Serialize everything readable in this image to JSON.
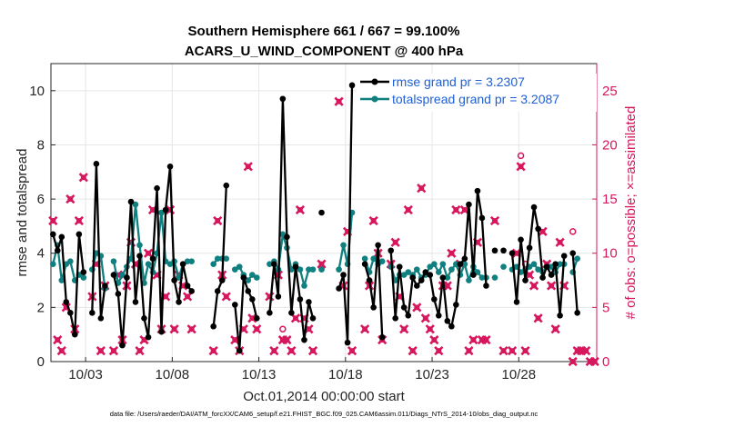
{
  "chart_data": {
    "type": "line",
    "title": "Southern Hemisphere 661 / 667 = 99.100%",
    "subtitle": "ACARS_U_WIND_COMPONENT @ 400 hPa",
    "xlabel": "Oct.01,2014 00:00:00 start",
    "ylabel": "rmse and totalspread",
    "y2label": "# of obs: o=possible; ×=assimilated",
    "xlim": [
      1,
      32.5
    ],
    "ylim": [
      0,
      11
    ],
    "y2lim": [
      0,
      27.5
    ],
    "xticks": [
      3,
      8,
      13,
      18,
      23,
      28
    ],
    "xtick_labels": [
      "10/03",
      "10/08",
      "10/13",
      "10/18",
      "10/23",
      "10/28"
    ],
    "yticks": [
      0,
      2,
      4,
      6,
      8,
      10
    ],
    "y2ticks": [
      0,
      5,
      10,
      15,
      20,
      25
    ],
    "grid": true,
    "legend_location": "top-right",
    "series": [
      {
        "name": "rmse grand pr = 3.2307",
        "color": "#000000",
        "points": [
          [
            1.12,
            4.7
          ],
          [
            1.38,
            4.1
          ],
          [
            1.62,
            4.6
          ],
          [
            1.88,
            2.2
          ],
          [
            2.12,
            1.8
          ],
          [
            2.38,
            1.0
          ],
          [
            2.62,
            4.7
          ],
          [
            2.88,
            3.3
          ],
          [
            3.38,
            1.8
          ],
          [
            3.62,
            7.3
          ],
          [
            3.88,
            1.6
          ],
          [
            4.12,
            2.8
          ],
          [
            4.62,
            3.2
          ],
          [
            4.88,
            2.5
          ],
          [
            5.12,
            0.6
          ],
          [
            5.38,
            3.1
          ],
          [
            5.62,
            5.9
          ],
          [
            5.88,
            2.2
          ],
          [
            6.12,
            3.9
          ],
          [
            6.38,
            1.6
          ],
          [
            6.62,
            0.9
          ],
          [
            6.88,
            3.8
          ],
          [
            7.12,
            6.4
          ],
          [
            7.38,
            1.1
          ],
          [
            7.62,
            5.6
          ],
          [
            7.88,
            7.2
          ],
          [
            8.12,
            3.0
          ],
          [
            8.38,
            2.2
          ],
          [
            8.62,
            3.6
          ],
          [
            8.88,
            2.8
          ],
          [
            9.12,
            2.6
          ],
          [
            10.38,
            1.3
          ],
          [
            10.62,
            2.6
          ],
          [
            10.88,
            3.0
          ],
          [
            11.12,
            6.5
          ],
          [
            11.62,
            2.1
          ],
          [
            11.88,
            0.4
          ],
          [
            12.12,
            3.1
          ],
          [
            12.38,
            2.6
          ],
          [
            12.62,
            2.3
          ],
          [
            12.88,
            1.6
          ],
          [
            13.62,
            1.8
          ],
          [
            13.88,
            3.6
          ],
          [
            14.12,
            2.4
          ],
          [
            14.38,
            9.7
          ],
          [
            14.62,
            4.6
          ],
          [
            14.88,
            1.8
          ],
          [
            15.12,
            3.5
          ],
          [
            15.38,
            2.3
          ],
          [
            15.62,
            0.8
          ],
          [
            15.88,
            2.2
          ],
          [
            16.12,
            1.6
          ],
          [
            16.62,
            5.5
          ],
          [
            17.62,
            2.7
          ],
          [
            17.88,
            3.2
          ],
          [
            18.12,
            0.7
          ],
          [
            18.38,
            10.2
          ],
          [
            19.12,
            3.6
          ],
          [
            19.38,
            3.0
          ],
          [
            19.62,
            2.0
          ],
          [
            19.88,
            4.3
          ],
          [
            20.12,
            0.9
          ],
          [
            20.62,
            4.1
          ],
          [
            20.88,
            1.6
          ],
          [
            21.12,
            3.5
          ],
          [
            21.38,
            2.0
          ],
          [
            21.62,
            1.7
          ],
          [
            21.88,
            3.1
          ],
          [
            22.12,
            2.8
          ],
          [
            22.38,
            3.0
          ],
          [
            22.62,
            3.3
          ],
          [
            22.88,
            3.2
          ],
          [
            23.12,
            2.3
          ],
          [
            23.38,
            1.7
          ],
          [
            23.62,
            3.1
          ],
          [
            23.88,
            1.5
          ],
          [
            24.12,
            1.3
          ],
          [
            24.38,
            2.1
          ],
          [
            24.62,
            3.6
          ],
          [
            24.88,
            3.8
          ],
          [
            25.12,
            5.8
          ],
          [
            25.38,
            3.2
          ],
          [
            25.62,
            6.3
          ],
          [
            25.88,
            5.3
          ],
          [
            26.12,
            2.8
          ],
          [
            26.62,
            4.1
          ],
          [
            27.12,
            4.1
          ],
          [
            27.62,
            4.0
          ],
          [
            27.88,
            2.2
          ],
          [
            28.12,
            4.5
          ],
          [
            28.38,
            3.0
          ],
          [
            28.62,
            4.2
          ],
          [
            28.88,
            5.7
          ],
          [
            29.12,
            4.9
          ],
          [
            29.38,
            3.1
          ],
          [
            29.62,
            3.5
          ],
          [
            29.88,
            3.2
          ],
          [
            30.12,
            3.6
          ],
          [
            30.38,
            1.7
          ],
          [
            30.62,
            3.9
          ],
          [
            31.12,
            4.0
          ],
          [
            31.38,
            1.8
          ]
        ]
      },
      {
        "name": "totalspread grand pr = 3.2087",
        "color": "#0f7f7f",
        "points": [
          [
            1.12,
            3.6
          ],
          [
            1.38,
            4.3
          ],
          [
            1.62,
            3.0
          ],
          [
            1.88,
            3.6
          ],
          [
            2.12,
            3.7
          ],
          [
            2.38,
            3.0
          ],
          [
            2.62,
            3.2
          ],
          [
            2.88,
            3.1
          ],
          [
            3.38,
            3.4
          ],
          [
            3.62,
            4.0
          ],
          [
            3.88,
            3.9
          ],
          [
            4.12,
            2.7
          ],
          [
            4.62,
            3.7
          ],
          [
            4.88,
            2.9
          ],
          [
            5.12,
            3.2
          ],
          [
            5.38,
            3.5
          ],
          [
            5.62,
            3.8
          ],
          [
            5.88,
            5.8
          ],
          [
            6.12,
            4.3
          ],
          [
            6.38,
            2.9
          ],
          [
            6.62,
            3.6
          ],
          [
            6.88,
            3.3
          ],
          [
            7.12,
            4.0
          ],
          [
            7.38,
            5.5
          ],
          [
            7.62,
            3.7
          ],
          [
            7.88,
            3.6
          ],
          [
            8.12,
            3.7
          ],
          [
            8.38,
            3.1
          ],
          [
            8.62,
            3.6
          ],
          [
            8.88,
            3.7
          ],
          [
            9.12,
            3.7
          ],
          [
            10.38,
            3.6
          ],
          [
            10.62,
            3.8
          ],
          [
            10.88,
            3.8
          ],
          [
            11.12,
            3.8
          ],
          [
            11.62,
            3.4
          ],
          [
            11.88,
            3.5
          ],
          [
            12.12,
            3.2
          ],
          [
            12.38,
            3.0
          ],
          [
            12.62,
            3.2
          ],
          [
            12.88,
            3.1
          ],
          [
            13.62,
            3.6
          ],
          [
            13.88,
            3.7
          ],
          [
            14.12,
            3.4
          ],
          [
            14.38,
            4.7
          ],
          [
            14.62,
            4.2
          ],
          [
            14.88,
            3.4
          ],
          [
            15.12,
            3.6
          ],
          [
            15.38,
            3.4
          ],
          [
            15.62,
            2.8
          ],
          [
            15.88,
            3.4
          ],
          [
            16.12,
            3.4
          ],
          [
            16.62,
            3.4
          ],
          [
            17.62,
            3.4
          ],
          [
            17.88,
            4.3
          ],
          [
            18.12,
            3.6
          ],
          [
            18.38,
            5.5
          ],
          [
            19.12,
            3.8
          ],
          [
            19.38,
            3.3
          ],
          [
            19.62,
            3.8
          ],
          [
            19.88,
            3.6
          ],
          [
            20.12,
            3.7
          ],
          [
            20.62,
            3.5
          ],
          [
            20.88,
            3.0
          ],
          [
            21.12,
            3.2
          ],
          [
            21.38,
            3.2
          ],
          [
            21.62,
            3.3
          ],
          [
            21.88,
            3.2
          ],
          [
            22.12,
            3.4
          ],
          [
            22.38,
            3.1
          ],
          [
            22.62,
            3.2
          ],
          [
            22.88,
            3.5
          ],
          [
            23.12,
            3.6
          ],
          [
            23.38,
            3.3
          ],
          [
            23.62,
            3.6
          ],
          [
            23.88,
            3.1
          ],
          [
            24.12,
            3.4
          ],
          [
            24.38,
            3.6
          ],
          [
            24.62,
            3.2
          ],
          [
            24.88,
            3.6
          ],
          [
            25.12,
            3.0
          ],
          [
            25.38,
            3.5
          ],
          [
            25.62,
            3.3
          ],
          [
            25.88,
            3.1
          ],
          [
            26.12,
            3.1
          ],
          [
            26.62,
            3.1
          ],
          [
            27.12,
            3.5
          ],
          [
            27.62,
            3.4
          ],
          [
            27.88,
            3.5
          ],
          [
            28.12,
            3.3
          ],
          [
            28.38,
            3.4
          ],
          [
            28.62,
            3.5
          ],
          [
            28.88,
            3.6
          ],
          [
            29.12,
            3.4
          ],
          [
            29.38,
            3.3
          ],
          [
            29.62,
            3.5
          ],
          [
            29.88,
            3.5
          ],
          [
            30.12,
            3.3
          ],
          [
            30.38,
            3.6
          ],
          [
            30.62,
            3.6
          ],
          [
            31.12,
            3.3
          ],
          [
            31.38,
            3.8
          ]
        ]
      }
    ],
    "obs_possible": {
      "name": "possible",
      "color": "#d6175d",
      "marker": "o",
      "points": [
        [
          14.38,
          3
        ],
        [
          28.12,
          19
        ],
        [
          28.38,
          9
        ],
        [
          31.12,
          12
        ]
      ]
    },
    "obs_assimilated": {
      "name": "assimilated",
      "color": "#d6175d",
      "marker": "x",
      "points": [
        [
          1.12,
          13
        ],
        [
          1.38,
          2
        ],
        [
          1.62,
          1
        ],
        [
          1.88,
          5
        ],
        [
          2.12,
          15
        ],
        [
          2.38,
          3
        ],
        [
          2.62,
          13
        ],
        [
          2.88,
          17
        ],
        [
          3.38,
          6
        ],
        [
          3.62,
          9
        ],
        [
          3.88,
          1
        ],
        [
          4.12,
          7
        ],
        [
          4.62,
          1
        ],
        [
          4.88,
          8
        ],
        [
          5.12,
          2
        ],
        [
          5.38,
          7
        ],
        [
          5.62,
          11
        ],
        [
          5.88,
          9
        ],
        [
          6.12,
          1
        ],
        [
          6.38,
          2
        ],
        [
          6.62,
          10
        ],
        [
          6.88,
          14
        ],
        [
          7.12,
          8
        ],
        [
          7.38,
          3
        ],
        [
          7.62,
          6
        ],
        [
          7.88,
          14
        ],
        [
          8.12,
          3
        ],
        [
          8.38,
          8
        ],
        [
          8.62,
          7
        ],
        [
          8.88,
          6
        ],
        [
          9.12,
          3
        ],
        [
          10.38,
          1
        ],
        [
          10.62,
          13
        ],
        [
          10.88,
          8
        ],
        [
          11.12,
          6
        ],
        [
          11.62,
          2
        ],
        [
          11.88,
          1
        ],
        [
          12.12,
          3
        ],
        [
          12.38,
          18
        ],
        [
          12.62,
          4
        ],
        [
          12.88,
          3
        ],
        [
          13.62,
          6
        ],
        [
          13.88,
          1
        ],
        [
          14.12,
          8
        ],
        [
          14.38,
          2
        ],
        [
          14.62,
          2
        ],
        [
          14.88,
          1
        ],
        [
          15.12,
          4
        ],
        [
          15.38,
          14
        ],
        [
          15.62,
          4
        ],
        [
          15.88,
          3
        ],
        [
          16.12,
          1
        ],
        [
          16.62,
          9
        ],
        [
          17.62,
          24
        ],
        [
          17.88,
          7
        ],
        [
          18.12,
          12
        ],
        [
          18.38,
          1
        ],
        [
          19.12,
          3
        ],
        [
          19.38,
          7
        ],
        [
          19.62,
          13
        ],
        [
          19.88,
          10
        ],
        [
          20.12,
          2
        ],
        [
          20.62,
          9
        ],
        [
          20.88,
          11
        ],
        [
          21.12,
          6
        ],
        [
          21.38,
          3
        ],
        [
          21.62,
          14
        ],
        [
          21.88,
          1
        ],
        [
          22.12,
          5
        ],
        [
          22.38,
          16
        ],
        [
          22.62,
          4
        ],
        [
          22.88,
          3
        ],
        [
          23.12,
          2
        ],
        [
          23.38,
          1
        ],
        [
          23.62,
          7
        ],
        [
          23.88,
          7
        ],
        [
          24.12,
          10
        ],
        [
          24.38,
          14
        ],
        [
          24.62,
          9
        ],
        [
          24.88,
          14
        ],
        [
          25.12,
          1
        ],
        [
          25.38,
          2
        ],
        [
          25.62,
          11
        ],
        [
          25.88,
          2
        ],
        [
          26.12,
          2
        ],
        [
          26.62,
          13
        ],
        [
          27.12,
          1
        ],
        [
          27.62,
          1
        ],
        [
          27.88,
          10
        ],
        [
          28.12,
          18
        ],
        [
          28.38,
          1
        ],
        [
          28.62,
          8
        ],
        [
          28.88,
          7
        ],
        [
          29.12,
          4
        ],
        [
          29.38,
          12
        ],
        [
          29.62,
          9
        ],
        [
          29.88,
          7
        ],
        [
          30.12,
          3
        ],
        [
          30.38,
          11
        ],
        [
          30.62,
          7
        ],
        [
          31.12,
          0
        ],
        [
          31.38,
          1
        ],
        [
          31.62,
          1
        ],
        [
          31.88,
          1
        ],
        [
          32.12,
          0
        ],
        [
          32.38,
          0
        ]
      ]
    },
    "footnote": "data file: /Users/raeder/DAI/ATM_forcXX/CAM6_setup/f.e21.FHIST_BGC.f09_025.CAM6assim.011/Diags_NTrS_2014-10/obs_diag_output.nc"
  }
}
